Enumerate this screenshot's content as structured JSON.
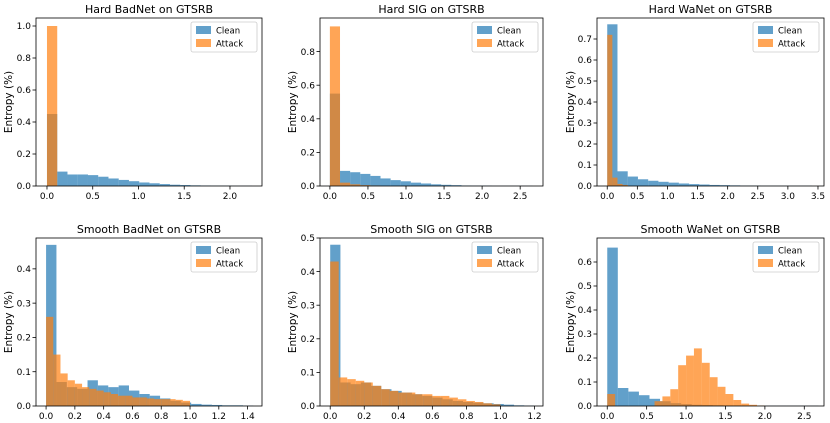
{
  "figure": {
    "ylabel": "Entropy (%)"
  },
  "colors": {
    "clean": "#1f77b4",
    "attack": "#ff7f0e"
  },
  "legend": {
    "clean": "Clean",
    "attack": "Attack",
    "placement": "top-right"
  },
  "chart_data": [
    {
      "type": "bar",
      "title": "Hard BadNet on GTSRB",
      "xlim": [
        -0.12,
        2.35
      ],
      "ylim": [
        0,
        1.05
      ],
      "xticks": [
        0.0,
        0.5,
        1.0,
        1.5,
        2.0
      ],
      "xtick_labels": [
        "0.0",
        "0.5",
        "1.0",
        "1.5",
        "2.0"
      ],
      "yticks": [
        0.0,
        0.2,
        0.4,
        0.6,
        0.8,
        1.0
      ],
      "ytick_labels": [
        "0.0",
        "0.2",
        "0.4",
        "0.6",
        "0.8",
        "1.0"
      ],
      "series": [
        {
          "name": "Clean",
          "bin_start": 0.0,
          "bin_width": 0.112,
          "values": [
            0.45,
            0.09,
            0.072,
            0.072,
            0.068,
            0.058,
            0.047,
            0.038,
            0.03,
            0.022,
            0.017,
            0.012,
            0.008,
            0.006,
            0.004,
            0.003,
            0.002,
            0.002,
            0.001,
            0.001
          ]
        },
        {
          "name": "Attack",
          "bin_start": 0.0,
          "bin_width": 0.112,
          "values": [
            1.0,
            0,
            0,
            0,
            0,
            0,
            0,
            0,
            0,
            0,
            0,
            0,
            0,
            0,
            0,
            0,
            0,
            0,
            0,
            0
          ]
        }
      ]
    },
    {
      "type": "bar",
      "title": "Hard SIG on GTSRB",
      "xlim": [
        -0.13,
        2.8
      ],
      "ylim": [
        0,
        1.0
      ],
      "xticks": [
        0.0,
        0.5,
        1.0,
        1.5,
        2.0,
        2.5
      ],
      "xtick_labels": [
        "0.0",
        "0.5",
        "1.0",
        "1.5",
        "2.0",
        "2.5"
      ],
      "yticks": [
        0.0,
        0.2,
        0.4,
        0.6,
        0.8
      ],
      "ytick_labels": [
        "0.0",
        "0.2",
        "0.4",
        "0.6",
        "0.8"
      ],
      "series": [
        {
          "name": "Clean",
          "bin_start": 0.0,
          "bin_width": 0.133,
          "values": [
            0.55,
            0.09,
            0.082,
            0.072,
            0.06,
            0.045,
            0.035,
            0.028,
            0.02,
            0.015,
            0.01,
            0.007,
            0.005,
            0.003,
            0.002,
            0.002,
            0.001,
            0.001,
            0.001,
            0.001
          ]
        },
        {
          "name": "Attack",
          "bin_start": 0.0,
          "bin_width": 0.133,
          "values": [
            0.95,
            0.02,
            0.01,
            0.005,
            0.003,
            0,
            0,
            0,
            0,
            0,
            0,
            0,
            0,
            0,
            0,
            0,
            0,
            0,
            0,
            0
          ]
        }
      ]
    },
    {
      "type": "bar",
      "title": "Hard WaNet on GTSRB",
      "xlim": [
        -0.17,
        3.6
      ],
      "ylim": [
        0,
        0.8
      ],
      "xticks": [
        0.0,
        0.5,
        1.0,
        1.5,
        2.0,
        2.5,
        3.0,
        3.5
      ],
      "xtick_labels": [
        "0.0",
        "0.5",
        "1.0",
        "1.5",
        "2.0",
        "2.5",
        "3.0",
        "3.5"
      ],
      "yticks": [
        0.0,
        0.1,
        0.2,
        0.3,
        0.4,
        0.5,
        0.6,
        0.7
      ],
      "ytick_labels": [
        "0.0",
        "0.1",
        "0.2",
        "0.3",
        "0.4",
        "0.5",
        "0.6",
        "0.7"
      ],
      "series": [
        {
          "name": "Clean",
          "bin_start": 0.0,
          "bin_width": 0.17,
          "values": [
            0.77,
            0.07,
            0.045,
            0.032,
            0.025,
            0.02,
            0.016,
            0.012,
            0.009,
            0.007,
            0.005,
            0.004,
            0.003,
            0.002,
            0.002,
            0.001,
            0.001,
            0.001,
            0.001,
            0.001
          ]
        },
        {
          "name": "Attack",
          "bin_start": 0.0,
          "bin_width": 0.085,
          "values": [
            0.72,
            0.04,
            0.01,
            0.005,
            0,
            0,
            0,
            0,
            0,
            0,
            0,
            0,
            0,
            0,
            0,
            0,
            0,
            0,
            0,
            0
          ]
        }
      ]
    },
    {
      "type": "bar",
      "title": "Smooth BadNet on GTSRB",
      "xlim": [
        -0.07,
        1.5
      ],
      "ylim": [
        0,
        0.49
      ],
      "xticks": [
        0.0,
        0.2,
        0.4,
        0.6,
        0.8,
        1.0,
        1.2,
        1.4
      ],
      "xtick_labels": [
        "0.0",
        "0.2",
        "0.4",
        "0.6",
        "0.8",
        "1.0",
        "1.2",
        "1.4"
      ],
      "yticks": [
        0.0,
        0.1,
        0.2,
        0.3,
        0.4
      ],
      "ytick_labels": [
        "0.0",
        "0.1",
        "0.2",
        "0.3",
        "0.4"
      ],
      "series": [
        {
          "name": "Clean",
          "bin_start": 0.0,
          "bin_width": 0.072,
          "values": [
            0.47,
            0.07,
            0.055,
            0.05,
            0.075,
            0.06,
            0.055,
            0.06,
            0.045,
            0.035,
            0.03,
            0.022,
            0.015,
            0.01,
            0.006,
            0.004,
            0.003,
            0.002,
            0.002,
            0.001
          ]
        },
        {
          "name": "Attack",
          "bin_start": 0.0,
          "bin_width": 0.05,
          "values": [
            0.26,
            0.15,
            0.095,
            0.075,
            0.065,
            0.055,
            0.05,
            0.045,
            0.04,
            0.035,
            0.03,
            0.03,
            0.025,
            0.025,
            0.022,
            0.02,
            0.02,
            0.02,
            0.018,
            0.015
          ]
        }
      ]
    },
    {
      "type": "bar",
      "title": "Smooth SIG on GTSRB",
      "xlim": [
        -0.06,
        1.25
      ],
      "ylim": [
        0,
        0.5
      ],
      "xticks": [
        0.0,
        0.2,
        0.4,
        0.6,
        0.8,
        1.0,
        1.2
      ],
      "xtick_labels": [
        "0.0",
        "0.2",
        "0.4",
        "0.6",
        "0.8",
        "1.0",
        "1.2"
      ],
      "yticks": [
        0.0,
        0.1,
        0.2,
        0.3,
        0.4,
        0.5
      ],
      "ytick_labels": [
        "0.0",
        "0.1",
        "0.2",
        "0.3",
        "0.4",
        "0.5"
      ],
      "series": [
        {
          "name": "Clean",
          "bin_start": 0.0,
          "bin_width": 0.06,
          "values": [
            0.48,
            0.07,
            0.065,
            0.07,
            0.06,
            0.05,
            0.045,
            0.04,
            0.035,
            0.03,
            0.025,
            0.02,
            0.015,
            0.012,
            0.01,
            0.008,
            0.006,
            0.004,
            0.002,
            0.001
          ]
        },
        {
          "name": "Attack",
          "bin_start": 0.0,
          "bin_width": 0.05,
          "values": [
            0.43,
            0.085,
            0.08,
            0.075,
            0.07,
            0.06,
            0.05,
            0.045,
            0.04,
            0.04,
            0.035,
            0.035,
            0.03,
            0.03,
            0.025,
            0.02,
            0.015,
            0.012,
            0.008,
            0.005
          ]
        }
      ]
    },
    {
      "type": "bar",
      "title": "Smooth WaNet on GTSRB",
      "xlim": [
        -0.13,
        2.75
      ],
      "ylim": [
        0,
        0.7
      ],
      "xticks": [
        0.0,
        0.5,
        1.0,
        1.5,
        2.0,
        2.5
      ],
      "xtick_labels": [
        "0.0",
        "0.5",
        "1.0",
        "1.5",
        "2.0",
        "2.5"
      ],
      "yticks": [
        0.0,
        0.1,
        0.2,
        0.3,
        0.4,
        0.5,
        0.6
      ],
      "ytick_labels": [
        "0.0",
        "0.1",
        "0.2",
        "0.3",
        "0.4",
        "0.5",
        "0.6"
      ],
      "series": [
        {
          "name": "Clean",
          "bin_start": 0.0,
          "bin_width": 0.134,
          "values": [
            0.66,
            0.075,
            0.06,
            0.045,
            0.03,
            0.02,
            0.012,
            0.008,
            0.005,
            0.004,
            0.003,
            0.002,
            0.002,
            0.001,
            0.001,
            0.001,
            0.001,
            0.001,
            0.001,
            0.001
          ]
        },
        {
          "name": "Attack",
          "bin_start": 0.0,
          "bin_width": 0.1,
          "values": [
            0.05,
            0,
            0,
            0,
            0,
            0,
            0.02,
            0.04,
            0.07,
            0.17,
            0.21,
            0.24,
            0.18,
            0.12,
            0.08,
            0.05,
            0.025,
            0.01,
            0.005,
            0.002
          ]
        }
      ]
    }
  ]
}
